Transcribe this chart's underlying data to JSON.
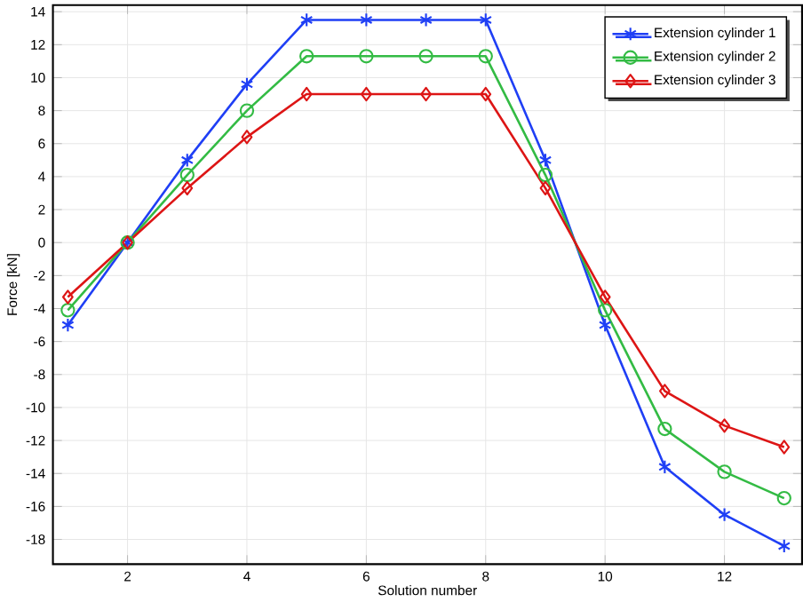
{
  "chart_data": {
    "type": "line",
    "xlabel": "Solution number",
    "ylabel": "Force [kN]",
    "x": [
      1,
      2,
      3,
      4,
      5,
      6,
      7,
      8,
      9,
      10,
      11,
      12,
      13
    ],
    "series": [
      {
        "name": "Extension cylinder 1",
        "color": "#1f3ff5",
        "marker": "cross",
        "values": [
          -5,
          0,
          5,
          9.6,
          13.5,
          13.5,
          13.5,
          13.5,
          5,
          -5,
          -13.6,
          -16.5,
          -18.4
        ]
      },
      {
        "name": "Extension cylinder 2",
        "color": "#33bb44",
        "marker": "circle",
        "values": [
          -4.1,
          0,
          4.1,
          8,
          11.3,
          11.3,
          11.3,
          11.3,
          4.1,
          -4.1,
          -11.3,
          -13.9,
          -15.5
        ]
      },
      {
        "name": "Extension cylinder 3",
        "color": "#dd1515",
        "marker": "diamond",
        "values": [
          -3.3,
          0,
          3.3,
          6.4,
          9.0,
          9.0,
          9.0,
          9.0,
          3.3,
          -3.3,
          -9.0,
          -11.1,
          -12.4
        ]
      }
    ],
    "xlim": [
      0.75,
      13.3
    ],
    "ylim": [
      -19.5,
      14.4
    ],
    "xticks": [
      2,
      4,
      6,
      8,
      10,
      12
    ],
    "yticks": [
      -18,
      -16,
      -14,
      -12,
      -10,
      -8,
      -6,
      -4,
      -2,
      0,
      2,
      4,
      6,
      8,
      10,
      12,
      14
    ],
    "grid": true,
    "legend": "top right",
    "line_style": "solid"
  }
}
